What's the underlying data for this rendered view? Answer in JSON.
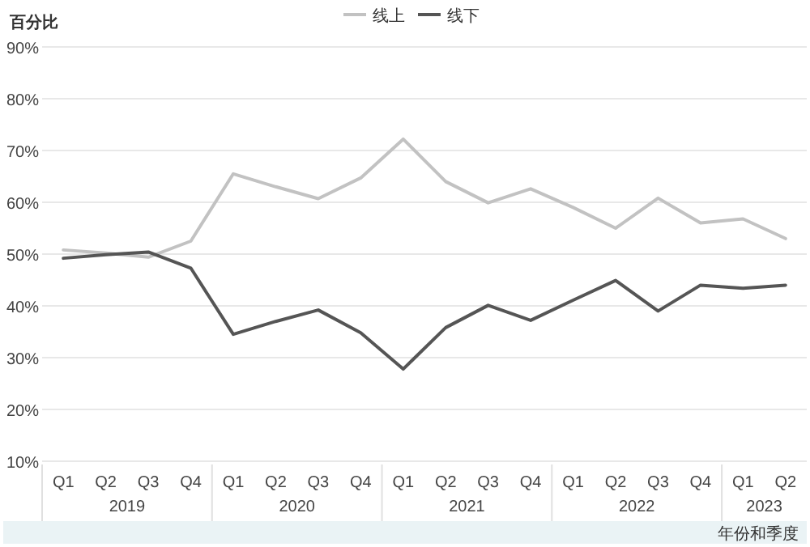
{
  "chart_data": {
    "type": "line",
    "ylabel": "百分比",
    "xlabel": "年份和季度",
    "categories": [
      "Q1",
      "Q2",
      "Q3",
      "Q4",
      "Q1",
      "Q2",
      "Q3",
      "Q4",
      "Q1",
      "Q2",
      "Q3",
      "Q4",
      "Q1",
      "Q2",
      "Q3",
      "Q4",
      "Q1",
      "Q2"
    ],
    "annotations": [
      "2019",
      "2020",
      "2021",
      "2022",
      "2023"
    ],
    "series": [
      {
        "name": "线上",
        "color": "#c2c2c2",
        "values": [
          50.8,
          50.2,
          49.4,
          52.5,
          65.5,
          63,
          60.7,
          64.7,
          72.2,
          64,
          59.9,
          62.6,
          59,
          55,
          60.8,
          56,
          56.8,
          53
        ]
      },
      {
        "name": "线下",
        "color": "#555555",
        "values": [
          49.2,
          49.9,
          50.4,
          47.3,
          34.5,
          37,
          39.2,
          34.8,
          27.8,
          35.8,
          40.1,
          37.2,
          41.1,
          44.9,
          39,
          44,
          43.4,
          44
        ]
      }
    ],
    "ylim": [
      10,
      90
    ],
    "yticks": [
      {
        "value": 10,
        "label": "10%"
      },
      {
        "value": 20,
        "label": "20%"
      },
      {
        "value": 30,
        "label": "30%"
      },
      {
        "value": 40,
        "label": "40%"
      },
      {
        "value": 50,
        "label": "50%"
      },
      {
        "value": 60,
        "label": "60%"
      },
      {
        "value": 70,
        "label": "70%"
      },
      {
        "value": 80,
        "label": "80%"
      },
      {
        "value": 90,
        "label": "90%"
      }
    ],
    "grid": "y",
    "legend": "top",
    "marker": "none",
    "line_style": "solid"
  }
}
